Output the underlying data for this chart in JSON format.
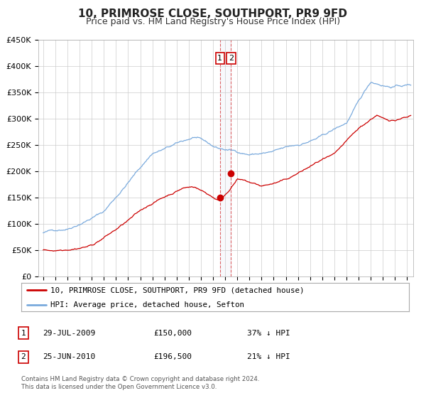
{
  "title": "10, PRIMROSE CLOSE, SOUTHPORT, PR9 9FD",
  "subtitle": "Price paid vs. HM Land Registry's House Price Index (HPI)",
  "ylim": [
    0,
    450000
  ],
  "yticks": [
    0,
    50000,
    100000,
    150000,
    200000,
    250000,
    300000,
    350000,
    400000,
    450000
  ],
  "ytick_labels": [
    "£0",
    "£50K",
    "£100K",
    "£150K",
    "£200K",
    "£250K",
    "£300K",
    "£350K",
    "£400K",
    "£450K"
  ],
  "xlim_start": 1994.6,
  "xlim_end": 2025.5,
  "line1_color": "#cc0000",
  "line2_color": "#7aaadd",
  "point1_date": 2009.57,
  "point1_value": 150000,
  "point2_date": 2010.48,
  "point2_value": 196500,
  "vline_x1": 2009.57,
  "vline_x2": 2010.48,
  "legend_line1": "10, PRIMROSE CLOSE, SOUTHPORT, PR9 9FD (detached house)",
  "legend_line2": "HPI: Average price, detached house, Sefton",
  "table_row1_date": "29-JUL-2009",
  "table_row1_price": "£150,000",
  "table_row1_hpi": "37% ↓ HPI",
  "table_row2_date": "25-JUN-2010",
  "table_row2_price": "£196,500",
  "table_row2_hpi": "21% ↓ HPI",
  "footnote1": "Contains HM Land Registry data © Crown copyright and database right 2024.",
  "footnote2": "This data is licensed under the Open Government Licence v3.0.",
  "background_color": "#ffffff",
  "grid_color": "#cccccc",
  "title_fontsize": 11,
  "subtitle_fontsize": 9
}
